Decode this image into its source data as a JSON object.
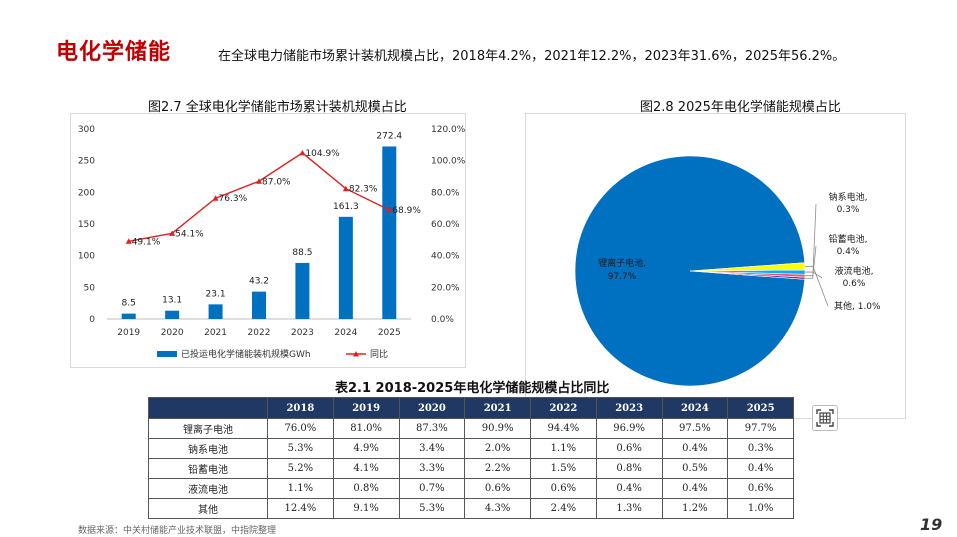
{
  "header": {
    "title": "电化学储能",
    "subtitle": "在全球电力储能市场累计装机规模占比，2018年4.2%，2021年12.2%，2023年31.6%，2025年56.2%。"
  },
  "chart_data": [
    {
      "type": "bar",
      "title": "图2.7 全球电化学储能市场累计装机规模占比",
      "categories": [
        "2019",
        "2020",
        "2021",
        "2022",
        "2023",
        "2024",
        "2025"
      ],
      "series": [
        {
          "name": "已投运电化学储能装机规模GWh",
          "type": "bar",
          "axis": "left",
          "values": [
            8.5,
            13.1,
            23.1,
            43.2,
            88.5,
            161.3,
            272.4
          ],
          "labels": [
            "8.5",
            "13.1",
            "23.1",
            "43.2",
            "88.5",
            "161.3",
            "272.4"
          ]
        },
        {
          "name": "同比",
          "type": "line",
          "axis": "right",
          "values": [
            49.1,
            54.1,
            76.3,
            87.0,
            104.9,
            82.3,
            68.9
          ],
          "labels": [
            "49.1%",
            "54.1%",
            "76.3%",
            "87.0%",
            "104.9%",
            "82.3%",
            "68.9%"
          ]
        }
      ],
      "y_left": {
        "ticks": [
          "0",
          "50",
          "100",
          "150",
          "200",
          "250",
          "300"
        ],
        "ylim": [
          0,
          300
        ]
      },
      "y_right": {
        "ticks": [
          "0.0%",
          "20.0%",
          "40.0%",
          "60.0%",
          "80.0%",
          "100.0%",
          "120.0%"
        ],
        "ylim": [
          0,
          120
        ]
      },
      "legend": "bottom",
      "colors": {
        "bar": "#0070c0",
        "line": "#e02020"
      }
    },
    {
      "type": "pie",
      "title": "图2.8 2025年电化学储能规模占比",
      "slices": [
        {
          "label": "锂离子电池,",
          "value_text": "97.7%",
          "value": 97.7,
          "color": "#0070c0"
        },
        {
          "label": "钠系电池,",
          "value_text": "0.3%",
          "value": 0.3,
          "color": "#7030a0"
        },
        {
          "label": "铅蓄电池,",
          "value_text": "0.4%",
          "value": 0.4,
          "color": "#e75480"
        },
        {
          "label": "液流电池,",
          "value_text": "0.6%",
          "value": 0.6,
          "color": "#00b0f0"
        },
        {
          "label": "其他,",
          "value_text": "1.0%",
          "value": 1.0,
          "color": "#ffff00"
        }
      ]
    },
    {
      "type": "table",
      "title": "表2.1 2018-2025年电化学储能规模占比同比",
      "columns": [
        "",
        "2018",
        "2019",
        "2020",
        "2021",
        "2022",
        "2023",
        "2024",
        "2025"
      ],
      "rows": [
        {
          "label": "锂离子电池",
          "values": [
            "76.0%",
            "81.0%",
            "87.3%",
            "90.9%",
            "94.4%",
            "96.9%",
            "97.5%",
            "97.7%"
          ]
        },
        {
          "label": "钠系电池",
          "values": [
            "5.3%",
            "4.9%",
            "3.4%",
            "2.0%",
            "1.1%",
            "0.6%",
            "0.4%",
            "0.3%"
          ]
        },
        {
          "label": "铅蓄电池",
          "values": [
            "5.2%",
            "4.1%",
            "3.3%",
            "2.2%",
            "1.5%",
            "0.8%",
            "0.5%",
            "0.4%"
          ]
        },
        {
          "label": "液流电池",
          "values": [
            "1.1%",
            "0.8%",
            "0.7%",
            "0.6%",
            "0.6%",
            "0.4%",
            "0.4%",
            "0.6%"
          ]
        },
        {
          "label": "其他",
          "values": [
            "12.4%",
            "9.1%",
            "5.3%",
            "4.3%",
            "2.4%",
            "1.3%",
            "1.2%",
            "1.0%"
          ]
        }
      ]
    }
  ],
  "footer": {
    "source": "数据来源：中关村储能产业技术联盟，中指院整理",
    "page_number": "19"
  },
  "icons": {
    "table_scan": "table-scan-icon"
  }
}
